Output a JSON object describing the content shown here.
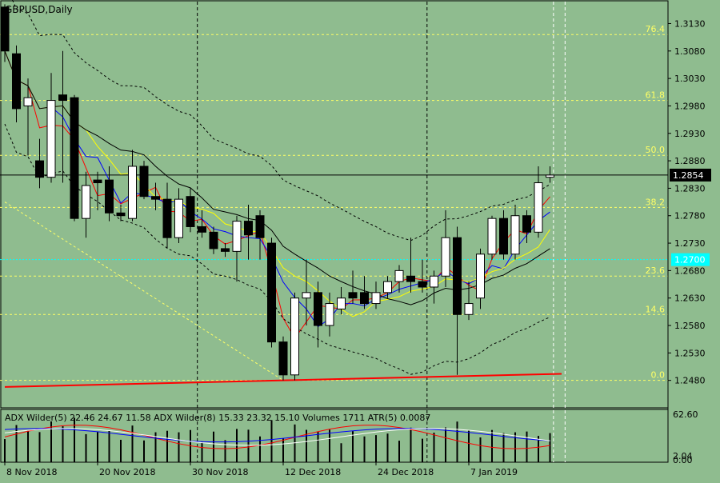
{
  "chart_data": {
    "type": "candlestick",
    "title": "GBPUSD,Daily",
    "symbol": "GBPUSD",
    "timeframe": "Daily",
    "current_price": "1.2854",
    "ylim": [
      1.243,
      1.317
    ],
    "price_ticks": [
      "1.3130",
      "1.3080",
      "1.3030",
      "1.2980",
      "1.2930",
      "1.2880",
      "1.2830",
      "1.2780",
      "1.2730",
      "1.2680",
      "1.2630",
      "1.2580",
      "1.2530",
      "1.2480"
    ],
    "x_labels": [
      {
        "label": "8 Nov 2018",
        "index": 0
      },
      {
        "label": "20 Nov 2018",
        "index": 8
      },
      {
        "label": "30 Nov 2018",
        "index": 16
      },
      {
        "label": "12 Dec 2018",
        "index": 24
      },
      {
        "label": "24 Dec 2018",
        "index": 32
      },
      {
        "label": "7 Jan 2019",
        "index": 40
      }
    ],
    "fib_levels": [
      {
        "label": "76.4",
        "price": 1.311
      },
      {
        "label": "61.8",
        "price": 1.299
      },
      {
        "label": "50.0",
        "price": 1.289
      },
      {
        "label": "38.2",
        "price": 1.2795
      },
      {
        "label": "23.6",
        "price": 1.267
      },
      {
        "label": "14.6",
        "price": 1.26
      },
      {
        "label": "0.0",
        "price": 1.248
      }
    ],
    "horizontal_marker_price": 1.27,
    "horizontal_marker_label": "1.2700",
    "candles": [
      {
        "o": 1.316,
        "h": 1.3165,
        "l": 1.306,
        "c": 1.308
      },
      {
        "o": 1.3075,
        "h": 1.309,
        "l": 1.295,
        "c": 1.2975
      },
      {
        "o": 1.298,
        "h": 1.303,
        "l": 1.289,
        "c": 1.2995
      },
      {
        "o": 1.288,
        "h": 1.292,
        "l": 1.283,
        "c": 1.285
      },
      {
        "o": 1.285,
        "h": 1.304,
        "l": 1.284,
        "c": 1.299
      },
      {
        "o": 1.3,
        "h": 1.308,
        "l": 1.284,
        "c": 1.299
      },
      {
        "o": 1.2995,
        "h": 1.3,
        "l": 1.277,
        "c": 1.2775
      },
      {
        "o": 1.2775,
        "h": 1.286,
        "l": 1.274,
        "c": 1.2835
      },
      {
        "o": 1.2845,
        "h": 1.286,
        "l": 1.279,
        "c": 1.284
      },
      {
        "o": 1.2845,
        "h": 1.287,
        "l": 1.277,
        "c": 1.2785
      },
      {
        "o": 1.2785,
        "h": 1.28,
        "l": 1.277,
        "c": 1.278
      },
      {
        "o": 1.2775,
        "h": 1.29,
        "l": 1.277,
        "c": 1.287
      },
      {
        "o": 1.287,
        "h": 1.288,
        "l": 1.281,
        "c": 1.2815
      },
      {
        "o": 1.2815,
        "h": 1.284,
        "l": 1.279,
        "c": 1.281
      },
      {
        "o": 1.281,
        "h": 1.284,
        "l": 1.272,
        "c": 1.274
      },
      {
        "o": 1.274,
        "h": 1.283,
        "l": 1.273,
        "c": 1.281
      },
      {
        "o": 1.2815,
        "h": 1.283,
        "l": 1.275,
        "c": 1.276
      },
      {
        "o": 1.276,
        "h": 1.279,
        "l": 1.274,
        "c": 1.275
      },
      {
        "o": 1.275,
        "h": 1.276,
        "l": 1.271,
        "c": 1.272
      },
      {
        "o": 1.272,
        "h": 1.273,
        "l": 1.2705,
        "c": 1.2715
      },
      {
        "o": 1.2715,
        "h": 1.278,
        "l": 1.266,
        "c": 1.277
      },
      {
        "o": 1.277,
        "h": 1.28,
        "l": 1.27,
        "c": 1.2745
      },
      {
        "o": 1.278,
        "h": 1.279,
        "l": 1.27,
        "c": 1.274
      },
      {
        "o": 1.273,
        "h": 1.274,
        "l": 1.254,
        "c": 1.255
      },
      {
        "o": 1.255,
        "h": 1.256,
        "l": 1.248,
        "c": 1.249
      },
      {
        "o": 1.249,
        "h": 1.264,
        "l": 1.248,
        "c": 1.263
      },
      {
        "o": 1.263,
        "h": 1.27,
        "l": 1.258,
        "c": 1.264
      },
      {
        "o": 1.264,
        "h": 1.266,
        "l": 1.254,
        "c": 1.258
      },
      {
        "o": 1.258,
        "h": 1.264,
        "l": 1.256,
        "c": 1.262
      },
      {
        "o": 1.261,
        "h": 1.265,
        "l": 1.26,
        "c": 1.263
      },
      {
        "o": 1.264,
        "h": 1.268,
        "l": 1.262,
        "c": 1.263
      },
      {
        "o": 1.264,
        "h": 1.267,
        "l": 1.261,
        "c": 1.262
      },
      {
        "o": 1.262,
        "h": 1.266,
        "l": 1.261,
        "c": 1.264
      },
      {
        "o": 1.264,
        "h": 1.267,
        "l": 1.263,
        "c": 1.266
      },
      {
        "o": 1.266,
        "h": 1.269,
        "l": 1.264,
        "c": 1.268
      },
      {
        "o": 1.267,
        "h": 1.274,
        "l": 1.264,
        "c": 1.266
      },
      {
        "o": 1.266,
        "h": 1.27,
        "l": 1.264,
        "c": 1.265
      },
      {
        "o": 1.265,
        "h": 1.268,
        "l": 1.262,
        "c": 1.267
      },
      {
        "o": 1.267,
        "h": 1.279,
        "l": 1.265,
        "c": 1.274
      },
      {
        "o": 1.274,
        "h": 1.276,
        "l": 1.249,
        "c": 1.26
      },
      {
        "o": 1.26,
        "h": 1.266,
        "l": 1.259,
        "c": 1.262
      },
      {
        "o": 1.263,
        "h": 1.272,
        "l": 1.261,
        "c": 1.271
      },
      {
        "o": 1.271,
        "h": 1.278,
        "l": 1.27,
        "c": 1.2775
      },
      {
        "o": 1.2775,
        "h": 1.279,
        "l": 1.27,
        "c": 1.271
      },
      {
        "o": 1.271,
        "h": 1.28,
        "l": 1.27,
        "c": 1.278
      },
      {
        "o": 1.278,
        "h": 1.279,
        "l": 1.273,
        "c": 1.275
      },
      {
        "o": 1.275,
        "h": 1.287,
        "l": 1.274,
        "c": 1.284
      },
      {
        "o": 1.285,
        "h": 1.287,
        "l": 1.284,
        "c": 1.2854
      }
    ],
    "indicator": {
      "label": "ADX Wilder(5) 22.46 24.67 11.58 ADX Wilder(8) 15.33 23.32 15.10 Volumes 1711 ATR(5) 0.0087",
      "y_max_label": "62.60",
      "y_mid_label": "2.04",
      "y_min_label": "0.00"
    }
  },
  "colors": {
    "background": "#8fbc8f",
    "bull_fill": "#ffffff",
    "bear_fill": "#000000",
    "fib_line": "#ffff66",
    "ma_red": "#ff0000",
    "ma_blue": "#0000ff",
    "ma_yellow": "#ffff00",
    "ma_black": "#000000",
    "marker_cyan": "#00ffff"
  }
}
